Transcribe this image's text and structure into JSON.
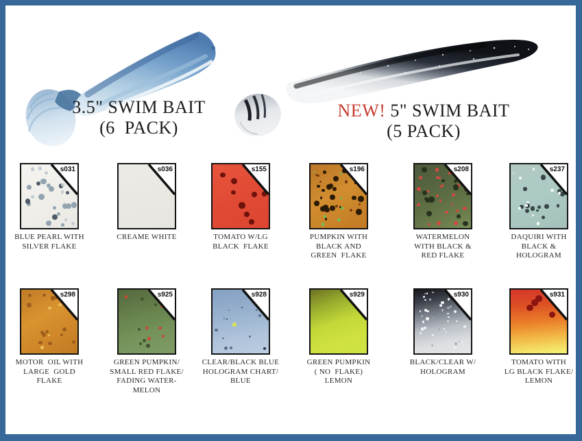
{
  "page": {
    "frame_color": "#386799",
    "background": "#ffffff"
  },
  "hero": {
    "product1": {
      "title": "3.5\" SWIM BAIT",
      "pack": "(6  PACK)"
    },
    "product2": {
      "new_label": "NEW!",
      "title": " 5\" SWIM BAIT",
      "pack": "(5 PACK)",
      "new_color": "#c53b2e"
    }
  },
  "swatches": [
    {
      "code": "s031",
      "label": "BLUE PEARL WITH\nSILVER FLAKE",
      "base": "linear-gradient(150deg,#f5f4f0 0%,#efeee9 60%,#e9e8e3 100%)",
      "flakes": [
        {
          "color": "#93a4b0",
          "count": 14,
          "min": 2.5,
          "max": 4.5
        },
        {
          "color": "#4e5a66",
          "count": 5,
          "min": 2.5,
          "max": 4
        },
        {
          "color": "#c3ccd2",
          "count": 8,
          "min": 2,
          "max": 3
        }
      ]
    },
    {
      "code": "s036",
      "label": "CREAME WHITE",
      "base": "linear-gradient(165deg,#edebe6 0%,#e7e5e0 100%)",
      "flakes": []
    },
    {
      "code": "s155",
      "label": "TOMATO W/LG\nBLACK  FLAKE",
      "base": "linear-gradient(155deg,#e7543c 0%,#e04a34 55%,#dd4631 100%)",
      "flakes": [
        {
          "color": "#6e120c",
          "count": 8,
          "min": 3,
          "max": 5
        }
      ]
    },
    {
      "code": "s196",
      "label": "PUMPKIN WITH\nBLACK AND\nGREEN  FLAKE",
      "base": "linear-gradient(150deg,#bc7628 0%,#d18d2f 45%,#c27a24 100%)",
      "flakes": [
        {
          "color": "#2b1a06",
          "count": 22,
          "min": 1.5,
          "max": 4.5
        },
        {
          "color": "#67c257",
          "count": 10,
          "min": 1,
          "max": 2.5
        },
        {
          "color": "#7a3c10",
          "count": 8,
          "min": 1.5,
          "max": 3
        }
      ]
    },
    {
      "code": "s208",
      "label": "WATERMELON\nWITH BLACK &\nRED FLAKE",
      "base": "linear-gradient(155deg,#4d5a3d 0%,#5a6a42 45%,#6b7d4c 80%,#79905a 100%)",
      "flakes": [
        {
          "color": "#d14a42",
          "count": 26,
          "min": 1.5,
          "max": 3
        },
        {
          "color": "#28331e",
          "count": 14,
          "min": 2,
          "max": 4.5
        }
      ]
    },
    {
      "code": "s237",
      "label": "DAQUIRI WITH\nBLACK &\nHOLOGRAM",
      "base": "linear-gradient(160deg,#b2c8c3 0%,#accbc4 50%,#a5c0ba 100%)",
      "flakes": [
        {
          "color": "#39464a",
          "count": 13,
          "min": 1.5,
          "max": 4
        },
        {
          "color": "#f6faf8",
          "count": 10,
          "min": 1,
          "max": 2.5
        }
      ]
    },
    {
      "code": "s298",
      "label": "MOTOR  OIL WITH\nLARGE  GOLD\nFLAKE",
      "base": "linear-gradient(150deg,#c07b28 0%,#d9932f 40%,#cc8428 75%,#c07a24 100%)",
      "flakes": [
        {
          "color": "#9e5e1d",
          "count": 14,
          "min": 2,
          "max": 3.5
        },
        {
          "color": "#e9be5e",
          "count": 6,
          "min": 1.5,
          "max": 2.5
        }
      ]
    },
    {
      "code": "s925",
      "label": "GREEN PUMPKIN/\nSMALL RED FLAKE/\nFADING WATER-\nMELON",
      "base": "linear-gradient(165deg,#55683f 0%,#66804c 35%,#74925a 65%,#7f9c66 100%)",
      "flakes": [
        {
          "color": "#c94a36",
          "count": 7,
          "min": 1.5,
          "max": 2.5
        },
        {
          "color": "#44552f",
          "count": 6,
          "min": 1.5,
          "max": 3
        }
      ]
    },
    {
      "code": "s928",
      "label": "CLEAR/BLACK BLUE\nHOLOGRAM CHART/\nBLUE",
      "base": "linear-gradient(170deg,#84a0c2 0%,#96b0cd 35%,#aec2da 70%,#bccde1 100%)",
      "flakes": [
        {
          "color": "#5a6f8c",
          "count": 8,
          "min": 1,
          "max": 2.5
        },
        {
          "color": "#d8e455",
          "count": 1,
          "min": 2.5,
          "max": 3
        },
        {
          "color": "#2e3a48",
          "count": 4,
          "min": 1,
          "max": 2
        }
      ]
    },
    {
      "code": "s929",
      "label": "GREEN PUMPKIN\n( NO  FLAKE)\nLEMON",
      "base": "linear-gradient(160deg,#6d7222 0%,#9aad2e 25%,#c3d838 50%,#cee13f 75%,#cfe244 100%)",
      "flakes": []
    },
    {
      "code": "s930",
      "label": "BLACK/CLEAR W/\nHOLOGRAM",
      "base": "linear-gradient(170deg,#15171c 0%,#3c4049 18%,#7c828c 38%,#b9bec5 58%,#dcdee1 80%,#e5e6e8 100%)",
      "flakes": [
        {
          "color": "#eef0f2",
          "count": 30,
          "min": 1,
          "max": 2.2
        },
        {
          "color": "#aab0b8",
          "count": 12,
          "min": 1,
          "max": 2
        }
      ]
    },
    {
      "code": "s931",
      "label": "TOMATO WITH\nLG BLACK FLAKE/\nLEMON",
      "base": "linear-gradient(175deg,#d5352a 0%,#dd5026 25%,#ea7e28 50%,#f2bc48 75%,#f4ea6e 95%,#f3ee75 100%)",
      "flakes": [
        {
          "color": "#8c1510",
          "count": 5,
          "min": 3.5,
          "max": 5,
          "area": "top"
        }
      ]
    }
  ]
}
